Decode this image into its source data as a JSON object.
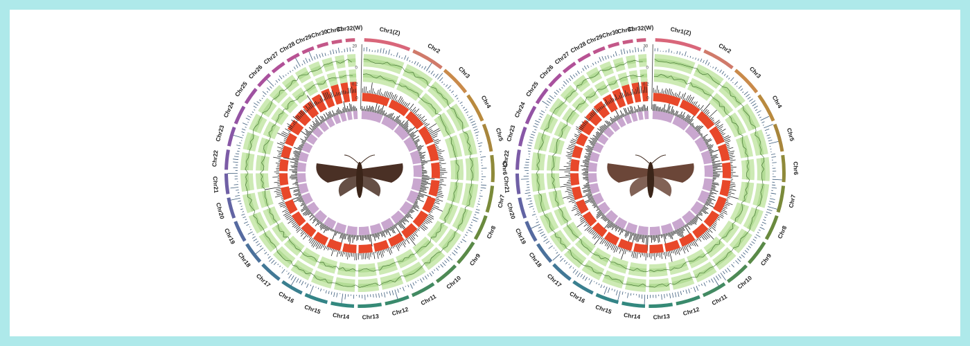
{
  "figure": {
    "panels": [
      {
        "id": "left",
        "chromosomes": [
          "Chr1(Z)",
          "Chr2",
          "Chr3",
          "Chr4",
          "Chr5",
          "Chr6",
          "Chr7",
          "Chr8",
          "Chr9",
          "Chr10",
          "Chr11",
          "Chr12",
          "Chr13",
          "Chr14",
          "Chr15",
          "Chr16",
          "Chr17",
          "Chr18",
          "Chr19",
          "Chr20",
          "Chr21",
          "Chr22",
          "Chr23",
          "Chr24",
          "Chr25",
          "Chr26",
          "Chr27",
          "Chr28",
          "Chr29",
          "Chr30",
          "Chr31",
          "Chr32(W)"
        ],
        "scale_labels": [
          "20",
          "0",
          "0.2",
          "0"
        ],
        "moth_color": "#4a3025"
      },
      {
        "id": "right",
        "chromosomes": [
          "Chr1(Z)",
          "Chr2",
          "Chr3",
          "Chr4",
          "Chr5",
          "Chr6",
          "Chr7",
          "Chr8",
          "Chr9",
          "Chr10",
          "Chr11",
          "Chr12",
          "Chr13",
          "Chr14",
          "Chr15",
          "Chr16",
          "Chr17",
          "Chr18",
          "Chr19",
          "Chr20",
          "Chr21",
          "Chr22",
          "Chr23",
          "Chr24",
          "Chr25",
          "Chr26",
          "Chr27",
          "Chr28",
          "Chr29",
          "Chr30",
          "Chr31",
          "Chr32(W)"
        ],
        "scale_labels": [
          "30",
          "0",
          "0.2",
          "0"
        ],
        "moth_color": "#6b4638"
      }
    ],
    "colors": {
      "background": "#aee9ea",
      "panel": "#ffffff",
      "green_track": "#cdeab4",
      "green_track_dark": "#9fd07e",
      "red_track": "#e8482a",
      "purple_track": "#c9a7cf",
      "bar_ink": "#222222"
    }
  }
}
